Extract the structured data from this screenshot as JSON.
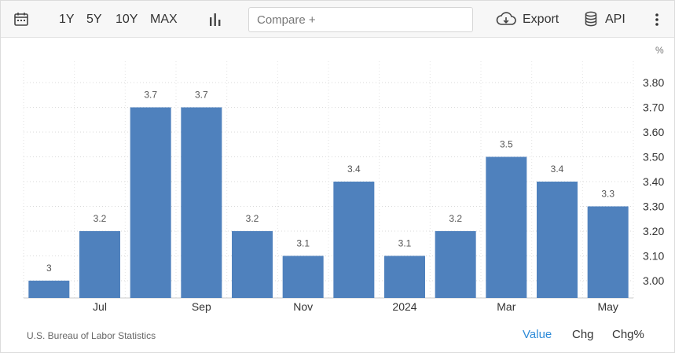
{
  "toolbar": {
    "ranges": [
      "1Y",
      "5Y",
      "10Y",
      "MAX"
    ],
    "compare_placeholder": "Compare +",
    "export_label": "Export",
    "api_label": "API"
  },
  "chart_data": {
    "type": "bar",
    "unit": "%",
    "categories": [
      "Jun 2023",
      "Jul 2023",
      "Aug 2023",
      "Sep 2023",
      "Oct 2023",
      "Nov 2023",
      "Dec 2023",
      "Jan 2024",
      "Feb 2024",
      "Mar 2024",
      "Apr 2024",
      "May 2024"
    ],
    "values": [
      3.0,
      3.2,
      3.7,
      3.7,
      3.2,
      3.1,
      3.4,
      3.1,
      3.2,
      3.5,
      3.4,
      3.3
    ],
    "data_labels": [
      "3",
      "3.2",
      "3.7",
      "3.7",
      "3.2",
      "3.1",
      "3.4",
      "3.1",
      "3.2",
      "3.5",
      "3.4",
      "3.3"
    ],
    "x_tick_labels": [
      "",
      "Jul",
      "",
      "Sep",
      "",
      "Nov",
      "",
      "2024",
      "",
      "Mar",
      "",
      "May"
    ],
    "y_ticks": [
      "3.80",
      "3.70",
      "3.60",
      "3.50",
      "3.40",
      "3.30",
      "3.20",
      "3.10",
      "3.00"
    ],
    "ylim": [
      2.93,
      3.87
    ],
    "grid": true,
    "bar_color": "#4f81bd"
  },
  "footer": {
    "source": "U.S. Bureau of Labor Statistics",
    "modes": [
      "Value",
      "Chg",
      "Chg%"
    ],
    "active_mode": "Value"
  },
  "colors": {
    "accent": "#2e8bd8",
    "bar": "#4f81bd"
  },
  "icons": [
    "calendar-icon",
    "bar-chart-icon",
    "cloud-download-icon",
    "database-icon",
    "more-vertical-icon"
  ]
}
